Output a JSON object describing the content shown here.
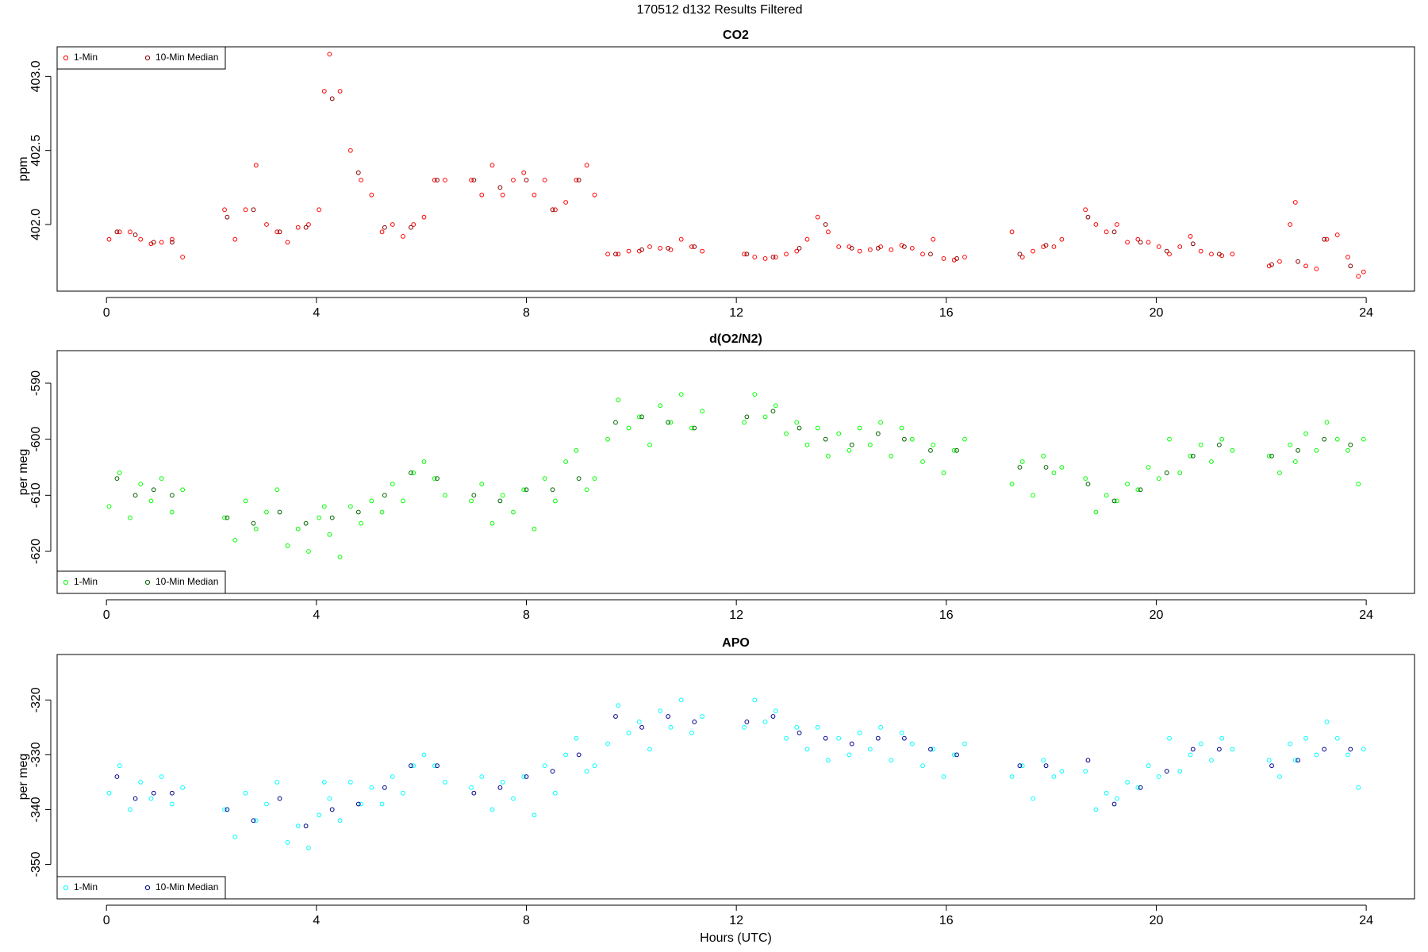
{
  "title": "170512   d132   Results Filtered",
  "chart_data": [
    {
      "type": "scatter",
      "title": "CO2",
      "ylabel": "ppm",
      "legend": "topleft",
      "xlim": [
        -0.94,
        24.92
      ],
      "xticks": [
        0,
        4,
        8,
        12,
        16,
        20,
        24
      ],
      "ylim": [
        401.55,
        403.2
      ],
      "yticks": [
        {
          "value": 402,
          "label": "402.0"
        },
        402.5,
        {
          "value": 403,
          "label": "403.0"
        }
      ],
      "series": [
        {
          "name": "1-Min",
          "color": "#ff0000",
          "x": [
            0.05,
            0.25,
            0.45,
            0.65,
            0.85,
            1.05,
            1.25,
            1.45,
            2.25,
            2.45,
            2.65,
            2.85,
            3.05,
            3.25,
            3.45,
            3.65,
            3.85,
            4.05,
            4.15,
            4.25,
            4.45,
            4.65,
            4.85,
            5.05,
            5.25,
            5.45,
            5.65,
            5.85,
            6.05,
            6.25,
            6.45,
            6.95,
            7.15,
            7.35,
            7.55,
            7.75,
            7.95,
            8.15,
            8.35,
            8.55,
            8.75,
            8.95,
            9.15,
            9.3,
            9.55,
            9.75,
            9.95,
            10.15,
            10.35,
            10.55,
            10.75,
            10.95,
            11.15,
            11.35,
            12.15,
            12.35,
            12.55,
            12.75,
            12.95,
            13.15,
            13.35,
            13.55,
            13.75,
            13.95,
            14.15,
            14.35,
            14.55,
            14.75,
            14.95,
            15.15,
            15.35,
            15.55,
            15.75,
            15.95,
            16.15,
            16.35,
            17.25,
            17.45,
            17.65,
            17.85,
            18.05,
            18.2,
            18.65,
            18.85,
            19.05,
            19.25,
            19.45,
            19.65,
            19.85,
            20.05,
            20.25,
            20.45,
            20.65,
            20.85,
            21.05,
            21.25,
            21.45,
            22.15,
            22.35,
            22.55,
            22.65,
            22.85,
            23.05,
            23.25,
            23.45,
            23.65,
            23.85,
            23.95
          ],
          "values": [
            401.9,
            401.95,
            401.95,
            401.9,
            401.87,
            401.88,
            401.9,
            401.78,
            402.1,
            401.9,
            402.1,
            402.4,
            402.0,
            401.95,
            401.88,
            401.98,
            402.0,
            402.1,
            402.9,
            403.15,
            402.9,
            402.5,
            402.3,
            402.2,
            401.95,
            402.0,
            401.92,
            402.0,
            402.05,
            402.3,
            402.3,
            402.3,
            402.2,
            402.4,
            402.2,
            402.3,
            402.35,
            402.2,
            402.3,
            402.1,
            402.15,
            402.3,
            402.4,
            402.2,
            401.8,
            401.8,
            401.82,
            401.82,
            401.85,
            401.84,
            401.83,
            401.9,
            401.85,
            401.82,
            401.8,
            401.78,
            401.77,
            401.78,
            401.8,
            401.82,
            401.9,
            402.05,
            401.95,
            401.85,
            401.85,
            401.82,
            401.83,
            401.85,
            401.83,
            401.86,
            401.84,
            401.8,
            401.9,
            401.77,
            401.76,
            401.78,
            401.95,
            401.78,
            401.82,
            401.85,
            401.85,
            401.9,
            402.1,
            402.0,
            401.95,
            402.0,
            401.88,
            401.9,
            401.88,
            401.85,
            401.8,
            401.85,
            401.92,
            401.82,
            401.8,
            401.79,
            401.8,
            401.72,
            401.75,
            402.0,
            402.15,
            401.72,
            401.7,
            401.9,
            401.93,
            401.78,
            401.65,
            401.68
          ]
        },
        {
          "name": "10-Min Median",
          "color": "#8b0000",
          "x": [
            0.2,
            0.55,
            0.9,
            1.25,
            2.3,
            2.8,
            3.3,
            3.8,
            4.3,
            4.8,
            5.3,
            5.8,
            6.3,
            7.0,
            7.5,
            8.0,
            8.5,
            9.0,
            9.7,
            10.2,
            10.7,
            11.2,
            12.2,
            12.7,
            13.2,
            13.7,
            14.2,
            14.7,
            15.2,
            15.7,
            16.2,
            17.4,
            17.9,
            18.7,
            19.2,
            19.7,
            20.2,
            20.7,
            21.2,
            22.2,
            22.7,
            23.2,
            23.7
          ],
          "values": [
            401.95,
            401.93,
            401.88,
            401.88,
            402.05,
            402.1,
            401.95,
            401.98,
            402.85,
            402.35,
            401.98,
            401.98,
            402.3,
            402.3,
            402.25,
            402.3,
            402.1,
            402.3,
            401.8,
            401.83,
            401.84,
            401.85,
            401.8,
            401.78,
            401.84,
            402.0,
            401.84,
            401.84,
            401.85,
            401.8,
            401.77,
            401.8,
            401.86,
            402.05,
            401.95,
            401.88,
            401.82,
            401.87,
            401.8,
            401.73,
            401.75,
            401.9,
            401.72
          ]
        }
      ]
    },
    {
      "type": "scatter",
      "title": "d(O2/N2)",
      "ylabel": "per meg",
      "legend": "bottomleft",
      "xlim": [
        -0.94,
        24.92
      ],
      "xticks": [
        0,
        4,
        8,
        12,
        16,
        20,
        24
      ],
      "ylim": [
        -627.5,
        -584.2
      ],
      "yticks": [
        -620,
        -610,
        -600,
        -590
      ],
      "series": [
        {
          "name": "1-Min",
          "color": "#00ff00",
          "x": [
            0.05,
            0.25,
            0.45,
            0.65,
            0.85,
            1.05,
            1.25,
            1.45,
            2.25,
            2.45,
            2.65,
            2.85,
            3.05,
            3.25,
            3.45,
            3.65,
            3.85,
            4.05,
            4.15,
            4.25,
            4.45,
            4.65,
            4.85,
            5.05,
            5.25,
            5.45,
            5.65,
            5.85,
            6.05,
            6.25,
            6.45,
            6.95,
            7.15,
            7.35,
            7.55,
            7.75,
            7.95,
            8.15,
            8.35,
            8.55,
            8.75,
            8.95,
            9.15,
            9.3,
            9.55,
            9.75,
            9.95,
            10.15,
            10.35,
            10.55,
            10.75,
            10.95,
            11.15,
            11.35,
            12.15,
            12.35,
            12.55,
            12.75,
            12.95,
            13.15,
            13.35,
            13.55,
            13.75,
            13.95,
            14.15,
            14.35,
            14.55,
            14.75,
            14.95,
            15.15,
            15.35,
            15.55,
            15.75,
            15.95,
            16.15,
            16.35,
            17.25,
            17.45,
            17.65,
            17.85,
            18.05,
            18.2,
            18.65,
            18.85,
            19.05,
            19.25,
            19.45,
            19.65,
            19.85,
            20.05,
            20.25,
            20.45,
            20.65,
            20.85,
            21.05,
            21.25,
            21.45,
            22.15,
            22.35,
            22.55,
            22.65,
            22.85,
            23.05,
            23.25,
            23.45,
            23.65,
            23.85,
            23.95
          ],
          "values": [
            -612,
            -606,
            -614,
            -608,
            -611,
            -607,
            -613,
            -609,
            -614,
            -618,
            -611,
            -616,
            -613,
            -609,
            -619,
            -616,
            -620,
            -614,
            -612,
            -617,
            -621,
            -612,
            -615,
            -611,
            -613,
            -608,
            -611,
            -606,
            -604,
            -607,
            -610,
            -611,
            -608,
            -615,
            -610,
            -613,
            -609,
            -616,
            -607,
            -611,
            -604,
            -602,
            -609,
            -607,
            -600,
            -593,
            -598,
            -596,
            -601,
            -594,
            -597,
            -592,
            -598,
            -595,
            -597,
            -592,
            -596,
            -594,
            -599,
            -597,
            -601,
            -598,
            -603,
            -599,
            -602,
            -598,
            -601,
            -597,
            -603,
            -598,
            -600,
            -604,
            -601,
            -606,
            -602,
            -600,
            -608,
            -604,
            -610,
            -603,
            -606,
            -605,
            -607,
            -613,
            -610,
            -611,
            -608,
            -609,
            -605,
            -607,
            -600,
            -606,
            -603,
            -601,
            -604,
            -600,
            -602,
            -603,
            -606,
            -601,
            -604,
            -599,
            -602,
            -597,
            -600,
            -602,
            -608,
            -600
          ]
        },
        {
          "name": "10-Min Median",
          "color": "#006400",
          "x": [
            0.2,
            0.55,
            0.9,
            1.25,
            2.3,
            2.8,
            3.3,
            3.8,
            4.3,
            4.8,
            5.3,
            5.8,
            6.3,
            7.0,
            7.5,
            8.0,
            8.5,
            9.0,
            9.7,
            10.2,
            10.7,
            11.2,
            12.2,
            12.7,
            13.2,
            13.7,
            14.2,
            14.7,
            15.2,
            15.7,
            16.2,
            17.4,
            17.9,
            18.7,
            19.2,
            19.7,
            20.2,
            20.7,
            21.2,
            22.2,
            22.7,
            23.2,
            23.7
          ],
          "values": [
            -607,
            -610,
            -609,
            -610,
            -614,
            -615,
            -613,
            -615,
            -614,
            -613,
            -610,
            -606,
            -607,
            -610,
            -611,
            -609,
            -609,
            -607,
            -597,
            -596,
            -597,
            -598,
            -596,
            -595,
            -598,
            -600,
            -601,
            -599,
            -600,
            -602,
            -602,
            -605,
            -605,
            -608,
            -611,
            -609,
            -606,
            -603,
            -601,
            -603,
            -602,
            -600,
            -601
          ]
        }
      ]
    },
    {
      "type": "scatter",
      "title": "APO",
      "ylabel": "per meg",
      "xlabel": "Hours (UTC)",
      "legend": "bottomleft",
      "xlim": [
        -0.94,
        24.92
      ],
      "xticks": [
        0,
        4,
        8,
        12,
        16,
        20,
        24
      ],
      "ylim": [
        -356.3,
        -311.7
      ],
      "yticks": [
        -350,
        -340,
        -330,
        -320
      ],
      "series": [
        {
          "name": "1-Min",
          "color": "#00ffff",
          "x": [
            0.05,
            0.25,
            0.45,
            0.65,
            0.85,
            1.05,
            1.25,
            1.45,
            2.25,
            2.45,
            2.65,
            2.85,
            3.05,
            3.25,
            3.45,
            3.65,
            3.85,
            4.05,
            4.15,
            4.25,
            4.45,
            4.65,
            4.85,
            5.05,
            5.25,
            5.45,
            5.65,
            5.85,
            6.05,
            6.25,
            6.45,
            6.95,
            7.15,
            7.35,
            7.55,
            7.75,
            7.95,
            8.15,
            8.35,
            8.55,
            8.75,
            8.95,
            9.15,
            9.3,
            9.55,
            9.75,
            9.95,
            10.15,
            10.35,
            10.55,
            10.75,
            10.95,
            11.15,
            11.35,
            12.15,
            12.35,
            12.55,
            12.75,
            12.95,
            13.15,
            13.35,
            13.55,
            13.75,
            13.95,
            14.15,
            14.35,
            14.55,
            14.75,
            14.95,
            15.15,
            15.35,
            15.55,
            15.75,
            15.95,
            16.15,
            16.35,
            17.25,
            17.45,
            17.65,
            17.85,
            18.05,
            18.2,
            18.65,
            18.85,
            19.05,
            19.25,
            19.45,
            19.65,
            19.85,
            20.05,
            20.25,
            20.45,
            20.65,
            20.85,
            21.05,
            21.25,
            21.45,
            22.15,
            22.35,
            22.55,
            22.65,
            22.85,
            23.05,
            23.25,
            23.45,
            23.65,
            23.85,
            23.95
          ],
          "values": [
            -337,
            -332,
            -340,
            -335,
            -338,
            -334,
            -339,
            -336,
            -340,
            -345,
            -337,
            -342,
            -339,
            -335,
            -346,
            -343,
            -347,
            -341,
            -335,
            -338,
            -342,
            -335,
            -339,
            -336,
            -339,
            -334,
            -337,
            -332,
            -330,
            -332,
            -335,
            -336,
            -334,
            -340,
            -335,
            -338,
            -334,
            -341,
            -332,
            -337,
            -330,
            -327,
            -333,
            -332,
            -328,
            -321,
            -326,
            -324,
            -329,
            -322,
            -325,
            -320,
            -326,
            -323,
            -325,
            -320,
            -324,
            -322,
            -327,
            -325,
            -329,
            -325,
            -331,
            -327,
            -330,
            -326,
            -329,
            -325,
            -331,
            -326,
            -328,
            -332,
            -329,
            -334,
            -330,
            -328,
            -334,
            -332,
            -338,
            -331,
            -334,
            -333,
            -333,
            -340,
            -337,
            -338,
            -335,
            -336,
            -332,
            -334,
            -327,
            -333,
            -330,
            -328,
            -331,
            -327,
            -329,
            -331,
            -334,
            -328,
            -331,
            -327,
            -330,
            -324,
            -327,
            -330,
            -336,
            -329
          ]
        },
        {
          "name": "10-Min Median",
          "color": "#00008b",
          "x": [
            0.2,
            0.55,
            0.9,
            1.25,
            2.3,
            2.8,
            3.3,
            3.8,
            4.3,
            4.8,
            5.3,
            5.8,
            6.3,
            7.0,
            7.5,
            8.0,
            8.5,
            9.0,
            9.7,
            10.2,
            10.7,
            11.2,
            12.2,
            12.7,
            13.2,
            13.7,
            14.2,
            14.7,
            15.2,
            15.7,
            16.2,
            17.4,
            17.9,
            18.7,
            19.2,
            19.7,
            20.2,
            20.7,
            21.2,
            22.2,
            22.7,
            23.2,
            23.7
          ],
          "values": [
            -334,
            -338,
            -337,
            -337,
            -340,
            -342,
            -338,
            -343,
            -340,
            -339,
            -336,
            -332,
            -332,
            -337,
            -336,
            -334,
            -333,
            -330,
            -323,
            -325,
            -323,
            -324,
            -324,
            -323,
            -326,
            -327,
            -328,
            -327,
            -327,
            -329,
            -330,
            -332,
            -332,
            -331,
            -339,
            -336,
            -333,
            -329,
            -329,
            -332,
            -331,
            -329,
            -329
          ]
        }
      ]
    }
  ]
}
